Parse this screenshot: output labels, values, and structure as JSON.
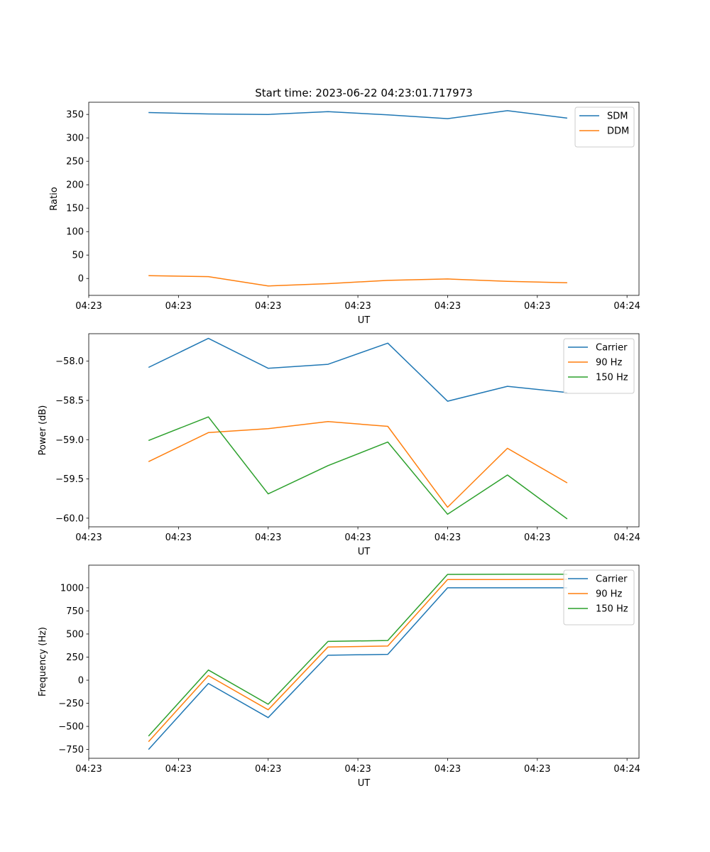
{
  "chart_data": [
    {
      "type": "line",
      "title": "Start time: 2023-06-22 04:23:01.717973",
      "xlabel": "UT",
      "ylabel": "Ratio",
      "xlim": [
        0,
        9.2
      ],
      "ylim": [
        -36,
        376
      ],
      "x": [
        1,
        2,
        3,
        4,
        5,
        6,
        7,
        8
      ],
      "xtick_positions": [
        0,
        1.5,
        3,
        4.5,
        6,
        7.5,
        9
      ],
      "xtick_labels": [
        "04:23",
        "04:23",
        "04:23",
        "04:23",
        "04:23",
        "04:23",
        "04:24"
      ],
      "yticks": [
        0,
        50,
        100,
        150,
        200,
        250,
        300,
        350
      ],
      "yticklabels": [
        "0",
        "50",
        "100",
        "150",
        "200",
        "250",
        "300",
        "350"
      ],
      "legend": "top-right",
      "series": [
        {
          "name": "SDM",
          "color": "#1f77b4",
          "values": [
            354,
            351,
            350,
            356,
            349,
            341,
            358,
            342
          ]
        },
        {
          "name": "DDM",
          "color": "#ff7f0e",
          "values": [
            6,
            4,
            -16,
            -11,
            -4,
            -1,
            -6,
            -9
          ]
        }
      ]
    },
    {
      "type": "line",
      "title": "",
      "xlabel": "UT",
      "ylabel": "Power (dB)",
      "xlim": [
        0,
        9.2
      ],
      "ylim": [
        -60.11,
        -57.65
      ],
      "x": [
        1,
        2,
        3,
        4,
        5,
        6,
        7,
        8
      ],
      "xtick_positions": [
        0,
        1.5,
        3,
        4.5,
        6,
        7.5,
        9
      ],
      "xtick_labels": [
        "04:23",
        "04:23",
        "04:23",
        "04:23",
        "04:23",
        "04:23",
        "04:24"
      ],
      "yticks": [
        -58.0,
        -58.5,
        -59.0,
        -59.5,
        -60.0
      ],
      "yticklabels": [
        "−58.0",
        "−58.5",
        "−59.0",
        "−59.5",
        "−60.0"
      ],
      "legend": "top-right",
      "series": [
        {
          "name": "Carrier",
          "color": "#1f77b4",
          "values": [
            -58.08,
            -57.71,
            -58.09,
            -58.04,
            -57.77,
            -58.51,
            -58.32,
            -58.4
          ]
        },
        {
          "name": "90 Hz",
          "color": "#ff7f0e",
          "values": [
            -59.28,
            -58.91,
            -58.86,
            -58.77,
            -58.83,
            -59.86,
            -59.11,
            -59.55
          ]
        },
        {
          "name": "150 Hz",
          "color": "#2ca02c",
          "values": [
            -59.01,
            -58.71,
            -59.69,
            -59.33,
            -59.03,
            -59.95,
            -59.45,
            -60.01
          ]
        }
      ]
    },
    {
      "type": "line",
      "title": "",
      "xlabel": "UT",
      "ylabel": "Frequency (Hz)",
      "xlim": [
        0,
        9.2
      ],
      "ylim": [
        -845,
        1245
      ],
      "x": [
        1,
        2,
        3,
        4,
        5,
        6,
        7,
        8
      ],
      "xtick_positions": [
        0,
        1.5,
        3,
        4.5,
        6,
        7.5,
        9
      ],
      "xtick_labels": [
        "04:23",
        "04:23",
        "04:23",
        "04:23",
        "04:23",
        "04:23",
        "04:24"
      ],
      "yticks": [
        -750,
        -500,
        -250,
        0,
        250,
        500,
        750,
        1000
      ],
      "yticklabels": [
        "−750",
        "−500",
        "−250",
        "0",
        "250",
        "500",
        "750",
        "1000"
      ],
      "legend": "top-right",
      "series": [
        {
          "name": "Carrier",
          "color": "#1f77b4",
          "values": [
            -750,
            -35,
            -405,
            270,
            280,
            1000,
            1000,
            1000
          ]
        },
        {
          "name": "90 Hz",
          "color": "#ff7f0e",
          "values": [
            -665,
            50,
            -320,
            360,
            370,
            1090,
            1090,
            1092
          ]
        },
        {
          "name": "150 Hz",
          "color": "#2ca02c",
          "values": [
            -605,
            110,
            -260,
            420,
            430,
            1145,
            1147,
            1147
          ]
        }
      ]
    }
  ]
}
